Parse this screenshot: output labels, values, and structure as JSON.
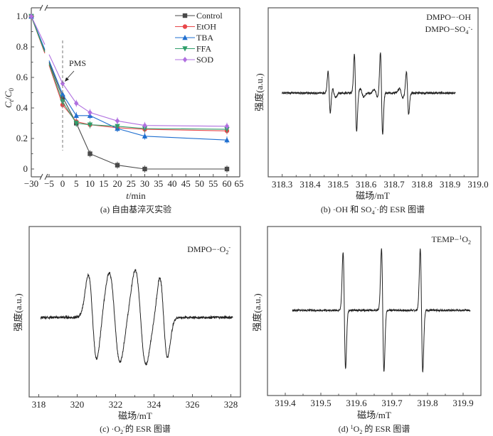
{
  "chart_data": [
    {
      "id": "a",
      "type": "line",
      "caption": "(a) 自由基淬灭实验",
      "xlabel_italic": "t",
      "xlabel_rest": "/min",
      "ylabel_c": "C",
      "ylabel_t": "t",
      "ylabel_slash": "/",
      "ylabel_c0": "C",
      "ylabel_0": "0",
      "x_ticks": [
        "-30",
        "-5",
        "0",
        "5",
        "10",
        "15",
        "20",
        "25",
        "30",
        "35",
        "40",
        "45",
        "50",
        "55",
        "60",
        "65"
      ],
      "x_tick_values": [
        -30,
        -5,
        0,
        5,
        10,
        15,
        20,
        25,
        30,
        35,
        40,
        45,
        50,
        55,
        60,
        65
      ],
      "y_ticks": [
        "0",
        "0.2",
        "0.4",
        "0.6",
        "0.8",
        "1.0"
      ],
      "y_tick_values": [
        0,
        0.2,
        0.4,
        0.6,
        0.8,
        1.0
      ],
      "ylim": [
        -0.05,
        1.05
      ],
      "xlim": [
        -30,
        65
      ],
      "axis_break": "between -30 and -5",
      "annotation": "PMS",
      "annotation_x": 0,
      "legend_position": "top-right",
      "series": [
        {
          "name": "Control",
          "color": "#4a4a4a",
          "marker": "square",
          "x": [
            -30,
            -5,
            0,
            5,
            10,
            20,
            30,
            60
          ],
          "values": [
            1.0,
            0.7,
            0.47,
            0.3,
            0.1,
            0.025,
            0.0,
            0.0
          ]
        },
        {
          "name": "EtOH",
          "color": "#e8474a",
          "marker": "circle",
          "x": [
            -30,
            -5,
            0,
            5,
            10,
            20,
            30,
            60
          ],
          "values": [
            1.0,
            0.68,
            0.42,
            0.31,
            0.29,
            0.27,
            0.26,
            0.25
          ]
        },
        {
          "name": "TBA",
          "color": "#1f6fd0",
          "marker": "triangle-up",
          "x": [
            -30,
            -5,
            0,
            5,
            10,
            20,
            30,
            60
          ],
          "values": [
            1.0,
            0.71,
            0.49,
            0.35,
            0.35,
            0.265,
            0.215,
            0.19
          ]
        },
        {
          "name": "FFA",
          "color": "#2e9e6a",
          "marker": "triangle-down",
          "x": [
            -30,
            -5,
            0,
            5,
            10,
            20,
            30,
            60
          ],
          "values": [
            1.0,
            0.69,
            0.44,
            0.3,
            0.29,
            0.28,
            0.265,
            0.26
          ]
        },
        {
          "name": "SOD",
          "color": "#b070e0",
          "marker": "diamond",
          "x": [
            -30,
            -5,
            0,
            5,
            10,
            20,
            30,
            60
          ],
          "values": [
            1.0,
            0.75,
            0.56,
            0.43,
            0.37,
            0.315,
            0.285,
            0.28
          ]
        }
      ]
    },
    {
      "id": "b",
      "type": "line",
      "caption_prefix": "(b) ·OH 和 SO",
      "caption_sub": "4",
      "caption_sup": "-",
      "caption_suffix": "·的 ESR 图谱",
      "xlabel": "磁场/mT",
      "ylabel": "强度(a.u.)",
      "x_ticks": [
        "318.3",
        "318.4",
        "318.5",
        "318.6",
        "318.7",
        "318.8",
        "318.9",
        "319.0"
      ],
      "x_tick_values": [
        318.3,
        318.4,
        318.5,
        318.6,
        318.7,
        318.8,
        318.9,
        319.0
      ],
      "xlim": [
        318.25,
        319.0
      ],
      "legend": [
        "DMPO-·OH",
        "DMPO-SO4-·"
      ],
      "legend_1": "DMPO−·OH",
      "legend_2_prefix": "DMPO−SO",
      "legend_2_sub": "4",
      "legend_2_sup": "-",
      "legend_2_suffix": "·",
      "baseline_range": [
        318.3,
        318.92
      ],
      "peaks": [
        {
          "center": 318.468,
          "amp": 0.55,
          "width": 0.004
        },
        {
          "center": 318.562,
          "amp": 1.0,
          "width": 0.004
        },
        {
          "center": 318.655,
          "amp": 1.05,
          "width": 0.004
        },
        {
          "center": 318.748,
          "amp": 0.55,
          "width": 0.004
        },
        {
          "center": 318.485,
          "amp": 0.12,
          "width": 0.006
        },
        {
          "center": 318.585,
          "amp": 0.1,
          "width": 0.006
        },
        {
          "center": 318.635,
          "amp": 0.1,
          "width": 0.006
        },
        {
          "center": 318.725,
          "amp": 0.12,
          "width": 0.006
        }
      ]
    },
    {
      "id": "c",
      "type": "line",
      "caption_prefix": "(c) ·O",
      "caption_sub": "2",
      "caption_sup": "-",
      "caption_suffix": "的 ESR 图谱",
      "xlabel": "磁场/mT",
      "ylabel": "强度(a.u.)",
      "x_ticks": [
        "318",
        "320",
        "322",
        "324",
        "326",
        "328"
      ],
      "x_tick_values": [
        318,
        320,
        322,
        324,
        326,
        328
      ],
      "xlim": [
        317.5,
        328.5
      ],
      "legend_prefix": "DMPO−·O",
      "legend_sub": "2",
      "legend_sup": "-",
      "baseline_range": [
        318.1,
        328.1
      ],
      "peaks": [
        {
          "center": 320.8,
          "amp": 0.85,
          "width": 0.22
        },
        {
          "center": 321.95,
          "amp": 0.9,
          "width": 0.28
        },
        {
          "center": 323.3,
          "amp": 0.95,
          "width": 0.28
        },
        {
          "center": 324.5,
          "amp": 0.8,
          "width": 0.2
        }
      ]
    },
    {
      "id": "d",
      "type": "line",
      "caption_prefix": "(d) ",
      "caption_sup": "1",
      "caption_mid": "O",
      "caption_sub": "2",
      "caption_suffix": " 的 ESR 图谱",
      "xlabel": "磁场/mT",
      "ylabel": "强度(a.u.)",
      "x_ticks": [
        "319.4",
        "319.5",
        "319.6",
        "319.7",
        "319.8",
        "319.9"
      ],
      "x_tick_values": [
        319.4,
        319.5,
        319.6,
        319.7,
        319.8,
        319.9
      ],
      "xlim": [
        319.35,
        319.95
      ],
      "legend_prefix": "TEMP−",
      "legend_sup": "1",
      "legend_mid": "O",
      "legend_sub": "2",
      "baseline_range": [
        319.42,
        319.92
      ],
      "peaks": [
        {
          "center": 319.566,
          "amp": 1.0,
          "width": 0.0035
        },
        {
          "center": 319.674,
          "amp": 1.05,
          "width": 0.0035
        },
        {
          "center": 319.783,
          "amp": 1.05,
          "width": 0.0035
        }
      ]
    }
  ]
}
